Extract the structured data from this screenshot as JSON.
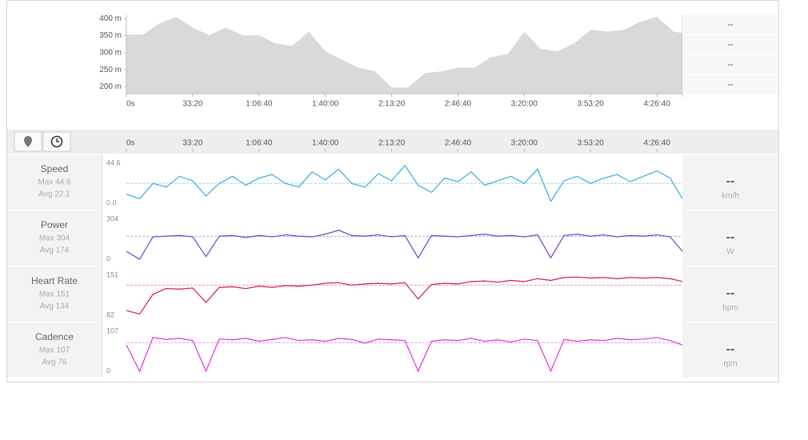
{
  "chart_data": [
    {
      "type": "area",
      "color": "#d9d9d9",
      "x": [
        0,
        500,
        1000,
        1500,
        2000,
        2500,
        3000,
        3500,
        4000,
        4500,
        5000,
        5500,
        6000,
        6500,
        7000,
        7500,
        8000,
        8500,
        9000,
        9500,
        10000,
        10500,
        11000,
        11500,
        12000,
        12500,
        13000,
        13500,
        14000,
        14500,
        15000,
        15500,
        16000,
        16500,
        16770
      ],
      "values": [
        353,
        353,
        386,
        405,
        374,
        351,
        374,
        351,
        351,
        327,
        320,
        362,
        304,
        280,
        256,
        245,
        198,
        198,
        240,
        245,
        256,
        256,
        287,
        296,
        362,
        311,
        304,
        327,
        367,
        362,
        367,
        391,
        405,
        362,
        358
      ],
      "xlim": [
        0,
        16770
      ],
      "xticks": [
        {
          "value": 0,
          "label": "0s"
        },
        {
          "value": 2000,
          "label": "33:20"
        },
        {
          "value": 4000,
          "label": "1:06:40"
        },
        {
          "value": 6000,
          "label": "1:40:00"
        },
        {
          "value": 8000,
          "label": "2:13:20"
        },
        {
          "value": 10000,
          "label": "2:46:40"
        },
        {
          "value": 12000,
          "label": "3:20:00"
        },
        {
          "value": 14000,
          "label": "3:53:20"
        },
        {
          "value": 16000,
          "label": "4:26:40"
        }
      ],
      "ylim": [
        180,
        410
      ],
      "yticks": [
        {
          "value": 200,
          "label": "200 m"
        },
        {
          "value": 250,
          "label": "250 m"
        },
        {
          "value": 300,
          "label": "300 m"
        },
        {
          "value": 350,
          "label": "350 m"
        },
        {
          "value": 400,
          "label": "400 m"
        }
      ],
      "summary": [
        "--",
        "--",
        "--",
        "--"
      ]
    },
    {
      "type": "line",
      "title": "Speed",
      "max_label": "Max 44.6",
      "avg_label": "Avg 22.1",
      "avg": 22.1,
      "unit": "km/h",
      "current": "--",
      "color": "#3aaadc",
      "x": [
        0,
        400,
        800,
        1200,
        1600,
        2000,
        2400,
        2800,
        3200,
        3600,
        4000,
        4400,
        4800,
        5200,
        5600,
        6000,
        6400,
        6800,
        7200,
        7600,
        8000,
        8400,
        8800,
        9200,
        9600,
        10000,
        10400,
        10800,
        11200,
        11600,
        12000,
        12400,
        12800,
        13200,
        13600,
        14000,
        14400,
        14800,
        15200,
        15600,
        16000,
        16400,
        16770
      ],
      "values": [
        10,
        5,
        22,
        18,
        30,
        25,
        8,
        22,
        30,
        20,
        28,
        32,
        22,
        18,
        35,
        26,
        38,
        22,
        18,
        33,
        25,
        42,
        20,
        12,
        28,
        24,
        35,
        20,
        25,
        30,
        22,
        38,
        2,
        25,
        30,
        22,
        28,
        32,
        24,
        30,
        36,
        28,
        5
      ],
      "xlim": [
        0,
        16770
      ],
      "ylim": [
        0,
        44.6
      ],
      "yticks": [
        {
          "value": 0,
          "label": "0.0"
        },
        44.6
      ]
    },
    {
      "type": "line",
      "title": "Power",
      "max_label": "Max 304",
      "avg_label": "Avg 174",
      "avg": 174,
      "unit": "W",
      "current": "--",
      "color": "#6f3fcf",
      "x": [
        0,
        400,
        800,
        1200,
        1600,
        2000,
        2400,
        2800,
        3200,
        3600,
        4000,
        4400,
        4800,
        5200,
        5600,
        6000,
        6400,
        6800,
        7200,
        7600,
        8000,
        8400,
        8800,
        9200,
        9600,
        10000,
        10400,
        10800,
        11200,
        11600,
        12000,
        12400,
        12800,
        13200,
        13600,
        14000,
        14400,
        14800,
        15200,
        15600,
        16000,
        16400,
        16770
      ],
      "values": [
        60,
        0,
        170,
        175,
        180,
        170,
        20,
        175,
        180,
        165,
        180,
        170,
        185,
        175,
        170,
        190,
        220,
        180,
        175,
        185,
        170,
        180,
        10,
        180,
        175,
        170,
        180,
        190,
        175,
        180,
        170,
        185,
        10,
        180,
        190,
        175,
        185,
        170,
        180,
        175,
        185,
        170,
        60
      ],
      "xlim": [
        0,
        16770
      ],
      "ylim": [
        0,
        304
      ],
      "yticks": [
        0,
        304
      ]
    },
    {
      "type": "line",
      "title": "Heart Rate",
      "max_label": "Max 151",
      "avg_label": "Avg 134",
      "avg": 134,
      "unit": "bpm",
      "current": "--",
      "color": "#d01a5a",
      "x": [
        0,
        400,
        800,
        1200,
        1600,
        2000,
        2400,
        2800,
        3200,
        3600,
        4000,
        4400,
        4800,
        5200,
        5600,
        6000,
        6400,
        6800,
        7200,
        7600,
        8000,
        8400,
        8800,
        9200,
        9600,
        10000,
        10400,
        10800,
        11200,
        11600,
        12000,
        12400,
        12800,
        13200,
        13600,
        14000,
        14400,
        14800,
        15200,
        15600,
        16000,
        16400,
        16770
      ],
      "values": [
        90,
        84,
        118,
        128,
        127,
        129,
        104,
        130,
        131,
        128,
        132,
        130,
        133,
        132,
        134,
        137,
        138,
        134,
        136,
        137,
        136,
        138,
        110,
        135,
        137,
        136,
        140,
        141,
        139,
        142,
        140,
        145,
        142,
        147,
        148,
        146,
        147,
        145,
        147,
        146,
        147,
        145,
        140
      ],
      "xlim": [
        0,
        16770
      ],
      "ylim": [
        82,
        151
      ],
      "yticks": [
        82,
        151
      ]
    },
    {
      "type": "line",
      "title": "Cadence",
      "max_label": "Max 107",
      "avg_label": "Avg 76",
      "avg": 76,
      "unit": "rpm",
      "current": "--",
      "color": "#e030e0",
      "x": [
        0,
        400,
        800,
        1200,
        1600,
        2000,
        2400,
        2800,
        3200,
        3600,
        4000,
        4400,
        4800,
        5200,
        5600,
        6000,
        6400,
        6800,
        7200,
        7600,
        8000,
        8400,
        8800,
        9200,
        9600,
        10000,
        10400,
        10800,
        11200,
        11600,
        12000,
        12400,
        12800,
        13200,
        13600,
        14000,
        14400,
        14800,
        15200,
        15600,
        16000,
        16400,
        16770
      ],
      "values": [
        70,
        0,
        90,
        85,
        88,
        82,
        0,
        86,
        84,
        88,
        80,
        85,
        90,
        82,
        84,
        80,
        88,
        85,
        75,
        86,
        84,
        82,
        0,
        80,
        84,
        82,
        88,
        80,
        84,
        78,
        86,
        82,
        0,
        85,
        80,
        84,
        82,
        88,
        84,
        86,
        90,
        82,
        70
      ],
      "xlim": [
        0,
        16770
      ],
      "ylim": [
        0,
        107
      ],
      "yticks": [
        0,
        107
      ]
    }
  ]
}
